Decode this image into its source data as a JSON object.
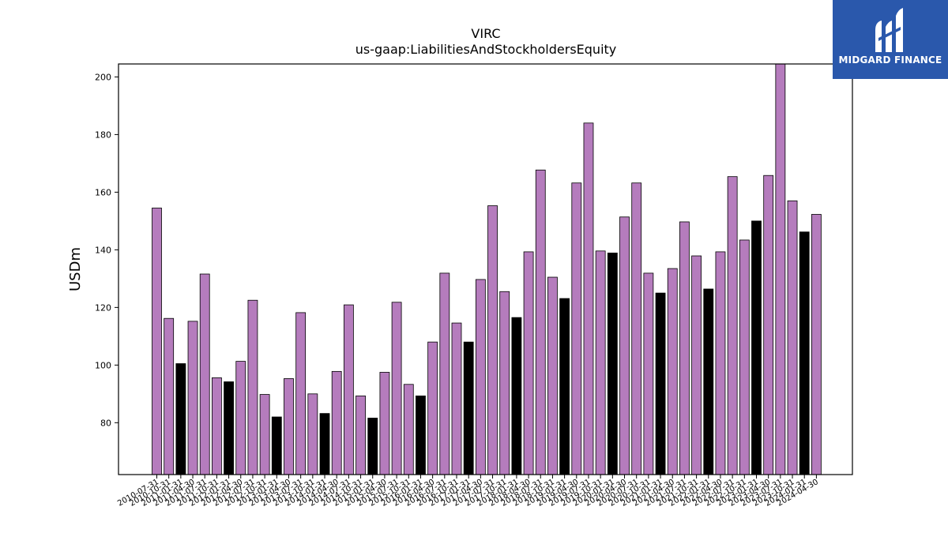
{
  "logo": {
    "text": "MIDGARD FINANCE",
    "color": "#2a58ac"
  },
  "chart_data": {
    "type": "bar",
    "title": "VIRC",
    "subtitle": "us-gaap:LiabilitiesAndStockholdersEquity",
    "xlabel": "",
    "ylabel": "USDm",
    "ylim": [
      62,
      204.5
    ],
    "yticks": [
      80,
      100,
      120,
      140,
      160,
      180,
      200
    ],
    "grid": false,
    "colors": {
      "default": "#b57cbd",
      "highlight": "#000000"
    },
    "categories": [
      "2010-07-31",
      "2010-10-31",
      "2011-01-31",
      "2011-04-30",
      "2011-07-31",
      "2011-10-31",
      "2012-01-31",
      "2012-04-30",
      "2012-07-31",
      "2012-10-31",
      "2013-01-31",
      "2013-04-30",
      "2013-07-31",
      "2013-10-31",
      "2014-01-31",
      "2014-04-30",
      "2014-07-31",
      "2014-10-31",
      "2015-01-31",
      "2015-04-30",
      "2015-07-31",
      "2015-10-31",
      "2016-01-31",
      "2016-04-30",
      "2016-07-31",
      "2016-10-31",
      "2017-01-31",
      "2017-04-30",
      "2017-07-31",
      "2017-10-31",
      "2018-01-31",
      "2018-04-30",
      "2018-07-31",
      "2018-10-31",
      "2019-01-31",
      "2019-04-30",
      "2019-07-31",
      "2019-10-31",
      "2020-01-31",
      "2020-04-30",
      "2020-07-31",
      "2020-10-31",
      "2021-01-31",
      "2021-04-30",
      "2021-07-31",
      "2021-10-31",
      "2022-01-31",
      "2022-04-30",
      "2022-07-31",
      "2022-10-31",
      "2023-01-31",
      "2023-04-30",
      "2023-07-31",
      "2023-10-31",
      "2024-01-31",
      "2024-04-30"
    ],
    "values": [
      154.5,
      116.2,
      100.5,
      115.2,
      131.6,
      95.6,
      94.2,
      101.3,
      122.5,
      89.8,
      82.0,
      95.3,
      118.2,
      90.0,
      83.2,
      97.8,
      120.9,
      89.3,
      81.6,
      97.5,
      121.8,
      93.3,
      89.3,
      108.0,
      131.9,
      114.6,
      108.0,
      129.7,
      155.3,
      125.5,
      116.5,
      139.3,
      167.7,
      130.5,
      123.1,
      163.2,
      184.0,
      139.6,
      138.9,
      151.4,
      163.2,
      131.9,
      125.0,
      133.5,
      149.7,
      137.9,
      126.4,
      139.3,
      165.4,
      143.4,
      150.0,
      165.8,
      204.5,
      157.0,
      146.2,
      152.3
    ],
    "highlight": [
      false,
      false,
      true,
      false,
      false,
      false,
      true,
      false,
      false,
      false,
      true,
      false,
      false,
      false,
      true,
      false,
      false,
      false,
      true,
      false,
      false,
      false,
      true,
      false,
      false,
      false,
      true,
      false,
      false,
      false,
      true,
      false,
      false,
      false,
      true,
      false,
      false,
      false,
      true,
      false,
      false,
      false,
      true,
      false,
      false,
      false,
      true,
      false,
      false,
      false,
      true,
      false,
      false,
      false,
      true,
      false
    ]
  }
}
